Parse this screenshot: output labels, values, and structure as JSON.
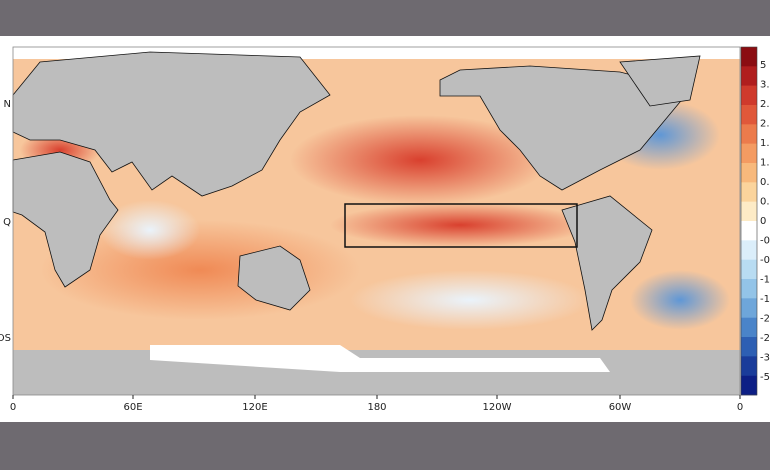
{
  "map": {
    "left_labels": [
      "N",
      "Q",
      "OS"
    ],
    "bottom_labels": [
      "0",
      "60E",
      "120E",
      "180",
      "120W",
      "60W",
      "0"
    ],
    "colorbar": {
      "labels": [
        "5",
        "3.",
        "2.",
        "2.",
        "1.",
        "1.",
        "0.",
        "0.",
        "0",
        "-0",
        "-0",
        "-1",
        "-1",
        "-2",
        "-2",
        "-3",
        "-5"
      ],
      "colors": [
        "#8b0d12",
        "#b01e1e",
        "#cf3a2c",
        "#e0583a",
        "#ec7b4c",
        "#f49b62",
        "#f8b97c",
        "#fbd49c",
        "#fdebc6",
        "#ffffff",
        "#dbeefa",
        "#b8dcf2",
        "#93c4e8",
        "#6ea6da",
        "#4a84c9",
        "#2d5fb3",
        "#1a3c9a",
        "#0d1f85"
      ]
    }
  }
}
